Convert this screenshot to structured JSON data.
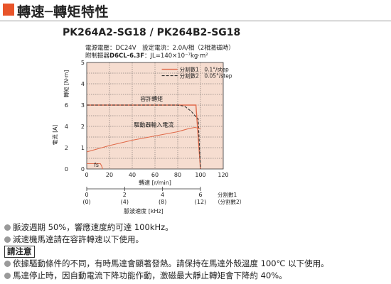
{
  "header": {
    "title": "轉速─轉矩特性",
    "accent_color": "#e8542a"
  },
  "model_line": "PK264A2-SG18 / PK264B2-SG18",
  "conditions": {
    "line1": "電源電壓：DC24V　設定電流：2.0A/相（2相激磁時）",
    "line2_prefix": "附制振器",
    "line2_bold": "D6CL-6.3F",
    "line2_suffix": "：JL=140×10⁻⁷kg·m²"
  },
  "chart_data": {
    "type": "line",
    "xlabel": "轉速 [r/min]",
    "ylabel_left": "電流 [A]",
    "ylabel_right": "轉矩 [N·m]",
    "xlim": [
      0,
      120
    ],
    "ylim": [
      0,
      5
    ],
    "x_ticks": [
      0,
      20,
      40,
      60,
      80,
      100,
      120
    ],
    "y_ticks_left": [
      0,
      1,
      2
    ],
    "y_ticks_right": [
      0,
      1,
      2,
      3,
      4,
      5
    ],
    "y_ticks_inner": [
      0,
      2,
      4,
      6
    ],
    "grid": true,
    "legend_position": "top-right",
    "series": [
      {
        "name": "分割數1　0.1°/step",
        "style": "solid",
        "color": "#e06a4a",
        "x": [
          0,
          20,
          40,
          60,
          70,
          80,
          88,
          93,
          96,
          100
        ],
        "y": [
          3.0,
          3.0,
          3.0,
          3.0,
          3.0,
          3.0,
          3.0,
          3.0,
          3.0,
          0
        ]
      },
      {
        "name": "分割數2　0.05°/step",
        "style": "dashed",
        "color": "#333333",
        "x": [
          0,
          20,
          40,
          60,
          70,
          80,
          86,
          92,
          96,
          98,
          100
        ],
        "y": [
          3.0,
          3.0,
          3.0,
          3.0,
          3.0,
          3.0,
          2.95,
          2.7,
          2.45,
          2.35,
          0
        ]
      },
      {
        "name": "驅動器輸入電流",
        "style": "solid",
        "color": "#e06a4a",
        "x": [
          0,
          10,
          20,
          40,
          60,
          80,
          90,
          95,
          100
        ],
        "y": [
          0.8,
          0.95,
          1.1,
          1.35,
          1.55,
          1.75,
          1.9,
          1.95,
          1.9
        ]
      },
      {
        "name": "fs",
        "style": "solid",
        "color": "#e06a4a",
        "x": [
          0,
          12,
          13,
          14
        ],
        "y": [
          0.25,
          0.25,
          0.15,
          0
        ]
      }
    ],
    "annotations": [
      "容許轉矩",
      "驅動器輸入電流",
      "fs"
    ],
    "secondary_axis": {
      "label": "脈波速度 [kHz]",
      "ticks_div1": [
        "0",
        "2",
        "4",
        "6"
      ],
      "ticks_div2": [
        "(0)",
        "(4)",
        "(8)",
        "(12)"
      ],
      "div_label1": "分割數1",
      "div_label2": "（分割數2）"
    }
  },
  "notes": {
    "n1": "脈波週期 50%，響應速度約可達 100kHz。",
    "n2": "減速機馬達請在容許轉速以下使用。",
    "warning_label": "請注意",
    "n3": "依據驅動條件的不同，有時馬達會顯著發熱。請保持在馬達外殼溫度 100℃ 以下使用。",
    "n4": "馬達停止時，因自動電流下降功能作動，激磁最大靜止轉矩會下降約 40%。"
  }
}
